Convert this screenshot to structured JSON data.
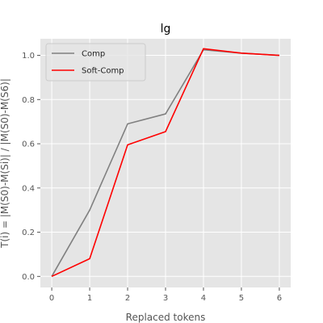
{
  "chart_data": {
    "type": "line",
    "title": "lg",
    "xlabel": "Replaced tokens",
    "ylabel": "T(i) = |M(S0)-M(Si)| / |M(S0)-M(S6)|",
    "x": [
      0,
      1,
      2,
      3,
      4,
      5,
      6
    ],
    "xlim": [
      -0.3,
      6.3
    ],
    "ylim": [
      -0.05,
      1.075
    ],
    "xticks": [
      0,
      1,
      2,
      3,
      4,
      5,
      6
    ],
    "yticks": [
      0.0,
      0.2,
      0.4,
      0.6,
      0.8,
      1.0
    ],
    "grid": true,
    "legend_position": "top-left",
    "series": [
      {
        "name": "Comp",
        "color": "#808080",
        "values": [
          0.0,
          0.3,
          0.69,
          0.735,
          1.025,
          1.01,
          1.0
        ]
      },
      {
        "name": "Soft-Comp",
        "color": "#ff0000",
        "values": [
          0.0,
          0.08,
          0.595,
          0.655,
          1.03,
          1.01,
          1.0
        ]
      }
    ]
  }
}
